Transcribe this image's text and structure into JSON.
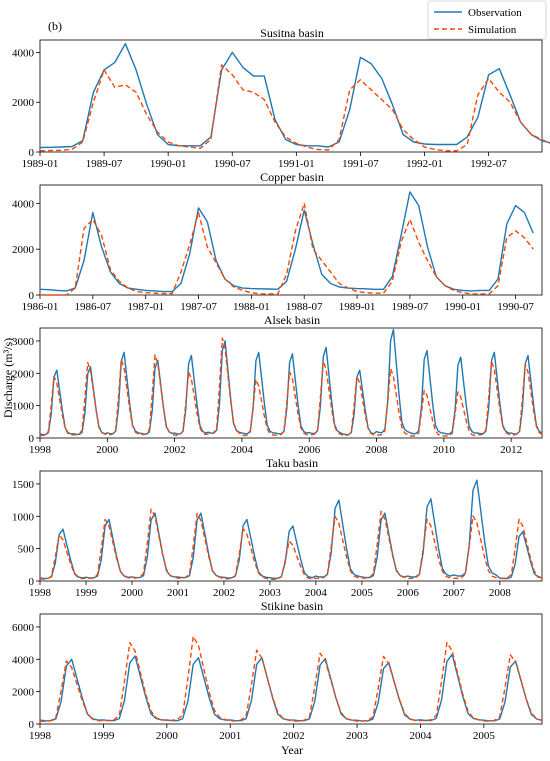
{
  "figure": {
    "panel_label": "(b)",
    "xlabel": "Year",
    "ylabel": "Discharge (m³/s)",
    "legend": {
      "position": "top-right",
      "entries": [
        {
          "label": "Observation",
          "color": "#1f77b4",
          "style": "solid"
        },
        {
          "label": "Simulation",
          "color": "#ff4500",
          "style": "dashed"
        }
      ]
    }
  },
  "chart_data": [
    {
      "type": "line",
      "title": "Susitna basin",
      "x_start": "1989-01",
      "x_end": "1992-12",
      "xtick_labels": [
        "1989-01",
        "1989-07",
        "1990-01",
        "1990-07",
        "1991-01",
        "1991-07",
        "1992-01",
        "1992-07"
      ],
      "xtick_pos": [
        0,
        6,
        12,
        18,
        24,
        30,
        36,
        42
      ],
      "ylim": [
        0,
        4500
      ],
      "yticks": [
        0,
        2000,
        4000
      ],
      "ytick_labels": [
        "0",
        "2000",
        "4000"
      ],
      "series": [
        {
          "name": "Observation",
          "color": "#1f77b4",
          "values": [
            180,
            190,
            200,
            220,
            450,
            2400,
            3300,
            3600,
            4350,
            3300,
            1900,
            700,
            300,
            250,
            250,
            250,
            600,
            3300,
            4000,
            3400,
            3050,
            3050,
            1300,
            500,
            300,
            250,
            250,
            200,
            400,
            1700,
            3800,
            3550,
            2950,
            1900,
            700,
            400,
            320,
            300,
            300,
            300,
            600,
            1400,
            3100,
            3350,
            2300,
            1200,
            700,
            450,
            350
          ]
        },
        {
          "name": "Simulation",
          "color": "#ff4500",
          "values": [
            50,
            60,
            70,
            110,
            400,
            2000,
            3300,
            2600,
            2700,
            2400,
            1500,
            800,
            400,
            250,
            200,
            150,
            500,
            3500,
            3100,
            2500,
            2400,
            2100,
            1200,
            600,
            350,
            200,
            100,
            80,
            500,
            2500,
            2900,
            2500,
            2100,
            1700,
            900,
            500,
            200,
            100,
            50,
            50,
            300,
            2300,
            2950,
            2400,
            2000,
            1200,
            700,
            500,
            300
          ]
        }
      ]
    },
    {
      "type": "line",
      "title": "Copper basin",
      "x_start": "1986-01",
      "x_end": "1990-10",
      "xtick_labels": [
        "1986-01",
        "1986-07",
        "1987-01",
        "1987-07",
        "1988-01",
        "1988-07",
        "1989-01",
        "1989-07",
        "1990-01",
        "1990-07"
      ],
      "xtick_pos": [
        0,
        6,
        12,
        18,
        24,
        30,
        36,
        42,
        48,
        54
      ],
      "ylim": [
        0,
        4800
      ],
      "yticks": [
        0,
        2000,
        4000
      ],
      "ytick_labels": [
        "0",
        "2000",
        "4000"
      ],
      "series": [
        {
          "name": "Observation",
          "color": "#1f77b4",
          "values": [
            250,
            230,
            200,
            180,
            300,
            1500,
            3600,
            2100,
            1000,
            500,
            300,
            250,
            200,
            180,
            150,
            150,
            500,
            1800,
            3800,
            3200,
            1500,
            700,
            400,
            300,
            280,
            270,
            260,
            250,
            600,
            2000,
            3700,
            2200,
            900,
            500,
            350,
            300,
            280,
            270,
            250,
            250,
            800,
            2600,
            4500,
            3900,
            2100,
            800,
            400,
            250,
            200,
            180,
            200,
            200,
            700,
            3100,
            3900,
            3600,
            2700
          ]
        },
        {
          "name": "Simulation",
          "color": "#ff4500",
          "values": [
            0,
            0,
            0,
            0,
            300,
            2900,
            3300,
            2600,
            1100,
            600,
            300,
            150,
            100,
            80,
            60,
            60,
            1000,
            2200,
            3600,
            2100,
            1400,
            700,
            350,
            200,
            100,
            50,
            50,
            50,
            900,
            2800,
            4000,
            2000,
            1500,
            1000,
            500,
            300,
            150,
            100,
            80,
            80,
            600,
            2300,
            3300,
            2300,
            1500,
            800,
            400,
            200,
            100,
            50,
            50,
            50,
            400,
            2500,
            2800,
            2500,
            2000
          ]
        }
      ]
    },
    {
      "type": "line",
      "title": "Alsek basin",
      "x_start": "1998-01",
      "x_end": "2012-12",
      "xtick_labels": [
        "1998",
        "2000",
        "2002",
        "2004",
        "2006",
        "2008",
        "2010",
        "2012"
      ],
      "xtick_pos": [
        0,
        24,
        48,
        72,
        96,
        120,
        144,
        168
      ],
      "ylim": [
        0,
        3400
      ],
      "yticks": [
        0,
        1000,
        2000,
        3000
      ],
      "ytick_labels": [
        "0",
        "1000",
        "2000",
        "3000"
      ],
      "annual_cycle": {
        "Observation": [
          2100,
          2200,
          2650,
          2400,
          2550,
          3000,
          2650,
          2600,
          2800,
          2100,
          3350,
          2700,
          2500,
          2650,
          2550
        ],
        "Simulation": [
          2000,
          2450,
          2550,
          2700,
          2150,
          3250,
          1900,
          2150,
          2500,
          2000,
          2250,
          1550,
          1500,
          2500,
          2400
        ]
      },
      "series": [
        {
          "name": "Observation",
          "color": "#1f77b4"
        },
        {
          "name": "Simulation",
          "color": "#ff4500"
        }
      ]
    },
    {
      "type": "line",
      "title": "Taku basin",
      "x_start": "1998-01",
      "x_end": "2008-12",
      "xtick_labels": [
        "1998",
        "1999",
        "2000",
        "2001",
        "2002",
        "2003",
        "2004",
        "2005",
        "2006",
        "2007",
        "2008"
      ],
      "xtick_pos": [
        0,
        12,
        24,
        36,
        48,
        60,
        72,
        84,
        96,
        108,
        120
      ],
      "ylim": [
        0,
        1700
      ],
      "yticks": [
        0,
        500,
        1000,
        1500
      ],
      "ytick_labels": [
        "0",
        "500",
        "1000",
        "1500"
      ],
      "annual_cycle": {
        "Observation": [
          800,
          950,
          1050,
          1050,
          950,
          850,
          1250,
          1050,
          1270,
          1560,
          760
        ],
        "Simulation": [
          750,
          1000,
          1170,
          1100,
          850,
          650,
          1050,
          1130,
          1000,
          1060,
          1000
        ]
      },
      "series": [
        {
          "name": "Observation",
          "color": "#1f77b4"
        },
        {
          "name": "Simulation",
          "color": "#ff4500"
        }
      ]
    },
    {
      "type": "line",
      "title": "Stikine basin",
      "x_start": "1998-01",
      "x_end": "2005-12",
      "xtick_labels": [
        "1998",
        "1999",
        "2000",
        "2001",
        "2002",
        "2003",
        "2004",
        "2005"
      ],
      "xtick_pos": [
        0,
        12,
        24,
        36,
        48,
        60,
        72,
        84
      ],
      "ylim": [
        0,
        6800
      ],
      "yticks": [
        0,
        2000,
        4000,
        6000
      ],
      "ytick_labels": [
        "0",
        "2000",
        "4000",
        "6000"
      ],
      "annual_cycle": {
        "Observation": [
          4000,
          4200,
          4100,
          4100,
          4050,
          3800,
          4300,
          3900
        ],
        "Simulation": [
          4100,
          5300,
          5700,
          4800,
          4600,
          4400,
          5300,
          4500
        ]
      },
      "series": [
        {
          "name": "Observation",
          "color": "#1f77b4"
        },
        {
          "name": "Simulation",
          "color": "#ff4500"
        }
      ]
    }
  ]
}
